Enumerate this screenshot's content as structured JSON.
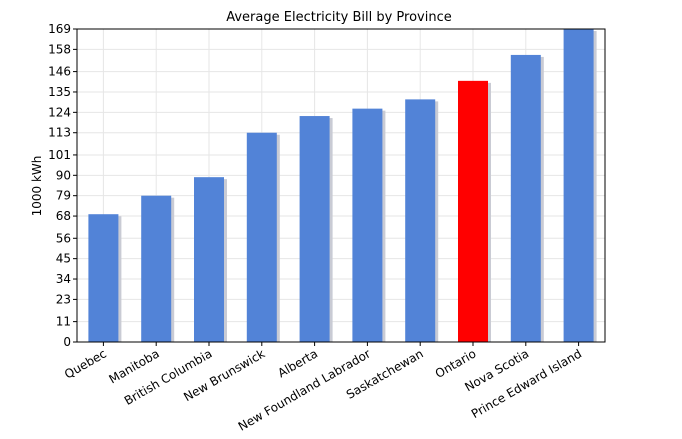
{
  "chart_data": {
    "type": "bar",
    "title": "Average Electricity Bill by Province",
    "xlabel": "",
    "ylabel": "1000 kWh",
    "categories": [
      "Quebec",
      "Manitoba",
      "British Columbia",
      "New Brunswick",
      "Alberta",
      "New Foundland Labrador",
      "Saskatchewan",
      "Ontario",
      "Nova Scotia",
      "Prince Edward Island"
    ],
    "values": [
      69,
      79,
      89,
      113,
      122,
      126,
      131,
      141,
      155,
      169
    ],
    "highlight_category": "Ontario",
    "ylim": [
      0,
      169
    ],
    "yticks": [
      0,
      11,
      23,
      34,
      45,
      56,
      68,
      79,
      90,
      101,
      113,
      124,
      135,
      146,
      158,
      169
    ],
    "grid": true,
    "legend": "none",
    "colors": {
      "bar": "#5283d7",
      "highlight": "#ff0000",
      "shadow": "#c9cbd4"
    }
  }
}
